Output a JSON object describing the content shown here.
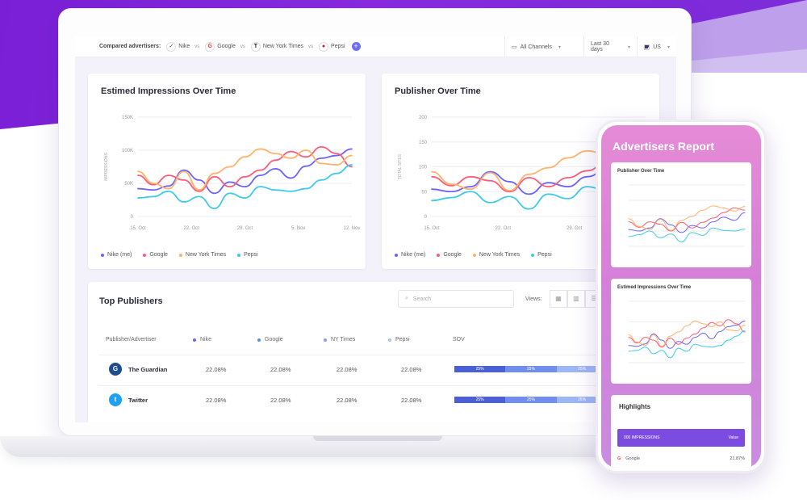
{
  "topbar": {
    "compared_label": "Compared advertisers:",
    "advertisers": [
      {
        "name": "Nike",
        "icon": "nike-logo",
        "color": "#2b3a8f"
      },
      {
        "name": "Google",
        "icon": "google-logo",
        "color": "#ea4335"
      },
      {
        "name": "New York Times",
        "icon": "nyt-logo",
        "color": "#222222"
      },
      {
        "name": "Pepsi",
        "icon": "pepsi-logo",
        "color": "#d0202e"
      }
    ],
    "vs": "vs",
    "add_icon": "plus-icon",
    "channels": "All Channels",
    "date_range": "Last 30 days",
    "country": "US"
  },
  "chart1": {
    "title": "Estimed Impressions Over Time"
  },
  "chart2": {
    "title": "Publisher Over Time"
  },
  "legend": [
    "Nike (me)",
    "Google",
    "New York Times",
    "Pepsi"
  ],
  "chart_data": [
    {
      "type": "line",
      "title": "Estimed Impressions Over Time",
      "ylabel": "IMPRESSIONS",
      "ytick_labels": [
        "0",
        "50K",
        "100K",
        "150K"
      ],
      "xtick_labels": [
        "15. Oct",
        "22. Oct",
        "29. Oct",
        "5. Nov",
        "12. Nov"
      ],
      "ylim": [
        0,
        150
      ],
      "x": [
        0,
        1,
        2,
        3,
        4,
        5,
        6,
        7,
        8,
        9,
        10,
        11,
        12,
        13,
        14
      ],
      "series": [
        {
          "name": "Nike (me)",
          "color": "#6c63ff",
          "values": [
            42,
            40,
            46,
            70,
            55,
            35,
            52,
            45,
            62,
            72,
            58,
            76,
            88,
            92,
            102
          ]
        },
        {
          "name": "Google",
          "color": "#ff5c7a",
          "values": [
            62,
            48,
            62,
            55,
            38,
            60,
            45,
            60,
            70,
            85,
            98,
            90,
            105,
            95,
            75
          ]
        },
        {
          "name": "New York Times",
          "color": "#ffb36b",
          "values": [
            68,
            50,
            42,
            68,
            40,
            65,
            75,
            90,
            102,
            95,
            88,
            100,
            80,
            78,
            92
          ]
        },
        {
          "name": "Pepsi",
          "color": "#3ecbe8",
          "values": [
            28,
            30,
            38,
            22,
            30,
            12,
            35,
            28,
            45,
            40,
            38,
            42,
            55,
            65,
            78
          ]
        }
      ]
    },
    {
      "type": "line",
      "title": "Publisher Over Time",
      "ylabel": "TOTAL SITES",
      "ytick_labels": [
        "0",
        "50",
        "100",
        "150",
        "200"
      ],
      "xtick_labels": [
        "15. Oct",
        "22. Oct",
        "29. Oct",
        "5. Nov"
      ],
      "ylim": [
        0,
        200
      ],
      "x": [
        0,
        1,
        2,
        3,
        4,
        5,
        6,
        7,
        8,
        9,
        10,
        11
      ],
      "series": [
        {
          "name": "Nike (me)",
          "color": "#6c63ff",
          "values": [
            55,
            50,
            60,
            90,
            70,
            45,
            68,
            60,
            80,
            95,
            85,
            110
          ]
        },
        {
          "name": "Google",
          "color": "#ff5c7a",
          "values": [
            80,
            62,
            80,
            72,
            50,
            78,
            60,
            78,
            92,
            110,
            125,
            118
          ]
        },
        {
          "name": "New York Times",
          "color": "#ffb36b",
          "values": [
            90,
            65,
            55,
            88,
            52,
            85,
            98,
            118,
            132,
            125,
            115,
            130
          ]
        },
        {
          "name": "Pepsi",
          "color": "#3ecbe8",
          "values": [
            32,
            38,
            50,
            28,
            40,
            15,
            45,
            36,
            60,
            52,
            50,
            56
          ]
        }
      ]
    }
  ],
  "publishers": {
    "title": "Top Publishers",
    "search_placeholder": "Search",
    "views_label": "Views:",
    "columns": [
      "Publisher/Advertiser",
      "Nike",
      "Google",
      "NY Times",
      "Pepsi",
      "SOV"
    ],
    "rows": [
      {
        "name": "The Guardian",
        "icon": "guardian-logo",
        "values": [
          "22.08%",
          "22.08%",
          "22.08%",
          "22.08%"
        ],
        "sov": [
          "25%",
          "25%",
          "25%"
        ]
      },
      {
        "name": "Twitter",
        "icon": "twitter-logo",
        "values": [
          "22.08%",
          "22.08%",
          "22.08%",
          "22.08%"
        ],
        "sov": [
          "25%",
          "25%",
          "25%"
        ]
      }
    ]
  },
  "phone": {
    "title": "Advertisers Report",
    "card1_title": "Publisher Over Time",
    "card2_title": "Estimed Impressions Over Time",
    "highlights_title": "Highlights",
    "highlight_bar_text": "000 IMPRESSIONS",
    "highlight_bar_value": "Value",
    "highlight_row_name": "Google",
    "highlight_row_value": "21.87%"
  }
}
